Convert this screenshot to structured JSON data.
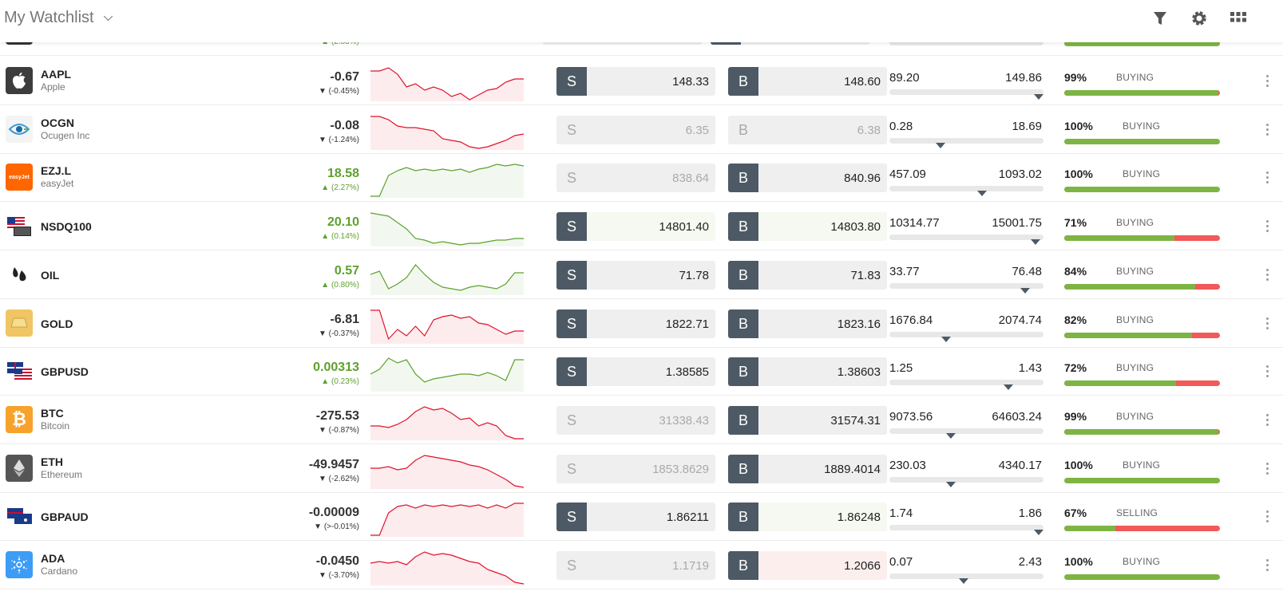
{
  "header": {
    "title": "My Watchlist"
  },
  "icons": {
    "filter": "filter-icon",
    "settings": "gear-icon",
    "grid": "grid-icon",
    "more": "more-vertical-icon"
  },
  "colors": {
    "up": "#5ea12e",
    "down": "#e0132c",
    "trade_button": "#4d5a65",
    "buy_bar": "#7db544",
    "sell_bar": "#f25959"
  },
  "partial_row": {
    "change_pct": "(2.88%)"
  },
  "rows": [
    {
      "symbol": "AAPL",
      "name": "Apple",
      "change": "-0.67",
      "change_pct": "(-0.45%)",
      "direction": "down",
      "sell": {
        "main": "148.",
        "tail": "33",
        "active": true
      },
      "buy": {
        "main": "148.",
        "tail": "60",
        "active": true
      },
      "low": "89.20",
      "high": "149.86",
      "range_pos": 0.97,
      "sentiment_pct": "99%",
      "sentiment_label": "BUYING",
      "sentiment_value": 0.99,
      "spark": [
        0.1,
        0.1,
        0,
        0.2,
        0.6,
        0.5,
        0.7,
        0.6,
        0.7,
        0.9,
        0.8,
        1,
        0.85,
        0.7,
        0.65,
        0.45,
        0.35,
        0.35
      ],
      "sell_tint": "",
      "buy_tint": ""
    },
    {
      "symbol": "OCGN",
      "name": "Ocugen Inc",
      "change": "-0.08",
      "change_pct": "(-1.24%)",
      "direction": "down",
      "sell": {
        "main": "6.",
        "tail": "35",
        "active": false
      },
      "buy": {
        "main": "6.",
        "tail": "38",
        "active": false
      },
      "low": "0.28",
      "high": "18.69",
      "range_pos": 0.33,
      "sentiment_pct": "100%",
      "sentiment_label": "BUYING",
      "sentiment_value": 1.0,
      "spark": [
        0,
        0,
        0.1,
        0.3,
        0.35,
        0.35,
        0.4,
        0.45,
        0.7,
        0.75,
        0.8,
        0.95,
        1,
        0.95,
        0.85,
        0.75,
        0.6,
        0.55
      ],
      "sell_tint": "",
      "buy_tint": ""
    },
    {
      "symbol": "EZJ.L",
      "name": "easyJet",
      "change": "18.58",
      "change_pct": "(2.27%)",
      "direction": "up",
      "sell": {
        "main": "838.",
        "tail": "64",
        "active": false
      },
      "buy": {
        "main": "840.",
        "tail": "96",
        "active": true
      },
      "low": "457.09",
      "high": "1093.02",
      "range_pos": 0.6,
      "sentiment_pct": "100%",
      "sentiment_label": "BUYING",
      "sentiment_value": 1.0,
      "spark": [
        1,
        1,
        0.35,
        0.2,
        0.1,
        0.2,
        0.15,
        0.2,
        0.15,
        0.2,
        0.15,
        0.25,
        0.15,
        0.1,
        0,
        0.05,
        0,
        0.05
      ],
      "sell_tint": "",
      "buy_tint": ""
    },
    {
      "symbol": "NSDQ100",
      "name": "",
      "change": "20.10",
      "change_pct": "(0.14%)",
      "direction": "up",
      "sell": {
        "main": "14801.",
        "tail": "40",
        "active": true
      },
      "buy": {
        "main": "14803.",
        "tail": "80",
        "active": true
      },
      "low": "10314.77",
      "high": "15001.75",
      "range_pos": 0.95,
      "sentiment_pct": "71%",
      "sentiment_label": "BUYING",
      "sentiment_value": 0.71,
      "spark": [
        0,
        0.05,
        0.1,
        0.3,
        0.5,
        0.8,
        0.85,
        0.95,
        0.9,
        0.95,
        1,
        0.95,
        0.95,
        0.9,
        0.85,
        0.85,
        0.8,
        0.8
      ],
      "sell_tint": "g",
      "buy_tint": "g"
    },
    {
      "symbol": "OIL",
      "name": "",
      "change": "0.57",
      "change_pct": "(0.80%)",
      "direction": "up",
      "sell": {
        "main": "71.",
        "tail": "78",
        "active": true
      },
      "buy": {
        "main": "71.",
        "tail": "83",
        "active": true
      },
      "low": "33.77",
      "high": "76.48",
      "range_pos": 0.88,
      "sentiment_pct": "84%",
      "sentiment_label": "BUYING",
      "sentiment_value": 0.84,
      "spark": [
        0.4,
        0.3,
        0.85,
        0.7,
        0.5,
        0.1,
        0.4,
        0.65,
        0.8,
        0.85,
        0.9,
        0.8,
        0.75,
        0.8,
        0.85,
        0.7,
        0.35,
        0.35
      ],
      "sell_tint": "",
      "buy_tint": ""
    },
    {
      "symbol": "GOLD",
      "name": "",
      "change": "-6.81",
      "change_pct": "(-0.37%)",
      "direction": "down",
      "sell": {
        "main": "1822.",
        "tail": "71",
        "active": true
      },
      "buy": {
        "main": "1823.",
        "tail": "16",
        "active": true
      },
      "low": "1676.84",
      "high": "2074.74",
      "range_pos": 0.37,
      "sentiment_pct": "82%",
      "sentiment_label": "BUYING",
      "sentiment_value": 0.82,
      "spark": [
        0,
        0,
        0.9,
        0.6,
        0.8,
        0.5,
        0.8,
        0.3,
        0.2,
        0.15,
        0.25,
        0.2,
        0.4,
        0.45,
        0.6,
        0.75,
        0.65,
        0.65
      ],
      "sell_tint": "",
      "buy_tint": ""
    },
    {
      "symbol": "GBPUSD",
      "name": "",
      "change": "0.00313",
      "change_pct": "(0.23%)",
      "direction": "up",
      "sell": {
        "main": "1.38",
        "tail": "585",
        "active": true
      },
      "buy": {
        "main": "1.38",
        "tail": "603",
        "active": true
      },
      "low": "1.25",
      "high": "1.43",
      "range_pos": 0.77,
      "sentiment_pct": "72%",
      "sentiment_label": "BUYING",
      "sentiment_value": 0.72,
      "spark": [
        0.5,
        0.35,
        0,
        0.15,
        0.05,
        0.5,
        0.75,
        0.65,
        0.6,
        0.55,
        0.5,
        0.5,
        0.55,
        0.45,
        0.55,
        0.7,
        0.05,
        0.05
      ],
      "sell_tint": "",
      "buy_tint": ""
    },
    {
      "symbol": "BTC",
      "name": "Bitcoin",
      "change": "-275.53",
      "change_pct": "(-0.87%)",
      "direction": "down",
      "sell": {
        "main": "31338.",
        "tail": "43",
        "active": false
      },
      "buy": {
        "main": "31574.",
        "tail": "31",
        "active": true
      },
      "low": "9073.56",
      "high": "64603.24",
      "range_pos": 0.4,
      "sentiment_pct": "99%",
      "sentiment_label": "BUYING",
      "sentiment_value": 0.99,
      "spark": [
        0.6,
        0.6,
        0.65,
        0.55,
        0.4,
        0.15,
        0,
        0.1,
        0.05,
        0.2,
        0.4,
        0.35,
        0.6,
        0.5,
        0.6,
        0.9,
        1,
        1
      ],
      "sell_tint": "",
      "buy_tint": ""
    },
    {
      "symbol": "ETH",
      "name": "Ethereum",
      "change": "-49.9457",
      "change_pct": "(-2.62%)",
      "direction": "down",
      "sell": {
        "main": "1853.",
        "tail": "8629",
        "active": false
      },
      "buy": {
        "main": "1889.",
        "tail": "4014",
        "active": true
      },
      "low": "230.03",
      "high": "4340.17",
      "range_pos": 0.4,
      "sentiment_pct": "100%",
      "sentiment_label": "BUYING",
      "sentiment_value": 1.0,
      "spark": [
        0.4,
        0.4,
        0.35,
        0.45,
        0.4,
        0.15,
        0,
        0.05,
        0.1,
        0.15,
        0.2,
        0.3,
        0.35,
        0.45,
        0.6,
        0.75,
        0.95,
        1
      ],
      "sell_tint": "",
      "buy_tint": ""
    },
    {
      "symbol": "GBPAUD",
      "name": "",
      "change": "-0.00009",
      "change_pct": "(>-0.01%)",
      "direction": "down",
      "sell": {
        "main": "1.86",
        "tail": "211",
        "active": true
      },
      "buy": {
        "main": "1.86",
        "tail": "248",
        "active": true
      },
      "low": "1.74",
      "high": "1.86",
      "range_pos": 0.97,
      "sentiment_pct": "67%",
      "sentiment_label": "SELLING",
      "sentiment_value": 0.33,
      "spark": [
        1,
        1,
        0.3,
        0.1,
        0.05,
        0.15,
        0.05,
        0.1,
        0.05,
        0.1,
        0.05,
        0.1,
        0.05,
        0.15,
        0.05,
        0.15,
        0,
        0
      ],
      "sell_tint": "",
      "buy_tint": "g"
    },
    {
      "symbol": "ADA",
      "name": "Cardano",
      "change": "-0.0450",
      "change_pct": "(-3.70%)",
      "direction": "down",
      "sell": {
        "main": "1.",
        "tail": "1719",
        "active": false
      },
      "buy": {
        "main": "1.",
        "tail": "2066",
        "active": true
      },
      "low": "0.07",
      "high": "2.43",
      "range_pos": 0.48,
      "sentiment_pct": "100%",
      "sentiment_label": "BUYING",
      "sentiment_value": 1.0,
      "spark": [
        0.35,
        0.3,
        0.35,
        0.3,
        0.4,
        0.15,
        0,
        0.1,
        0.05,
        0.1,
        0.2,
        0.3,
        0.35,
        0.55,
        0.65,
        0.75,
        0.95,
        1
      ],
      "sell_tint": "",
      "buy_tint": "r"
    }
  ]
}
